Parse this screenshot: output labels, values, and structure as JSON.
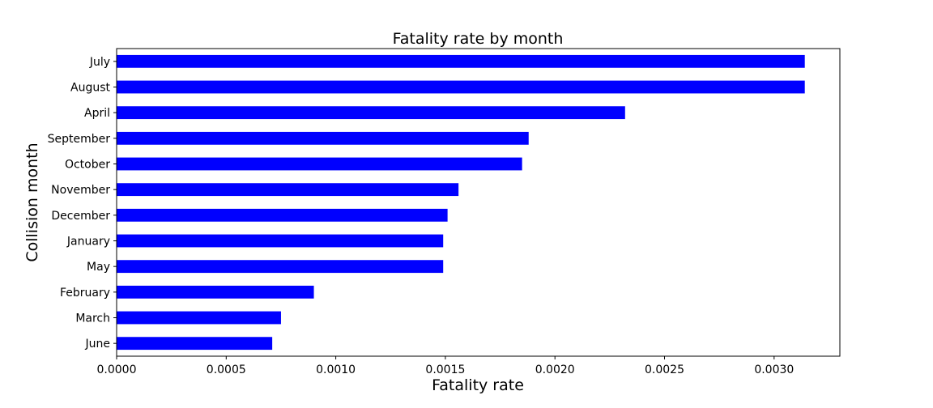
{
  "chart_data": {
    "type": "bar",
    "orientation": "horizontal",
    "title": "Fatality rate by month",
    "xlabel": "Fatality rate",
    "ylabel": "Collision month",
    "categories": [
      "July",
      "August",
      "April",
      "September",
      "October",
      "November",
      "December",
      "January",
      "May",
      "February",
      "March",
      "June"
    ],
    "values": [
      0.00314,
      0.00314,
      0.00232,
      0.00188,
      0.00185,
      0.00156,
      0.00151,
      0.00149,
      0.00149,
      0.0009,
      0.00075,
      0.00071
    ],
    "xlim": [
      0,
      0.0033
    ],
    "xticks": [
      "0.0000",
      "0.0005",
      "0.0010",
      "0.0015",
      "0.0020",
      "0.0025",
      "0.0030"
    ],
    "grid": false,
    "legend": "none",
    "bar_color": "#0000ff"
  }
}
